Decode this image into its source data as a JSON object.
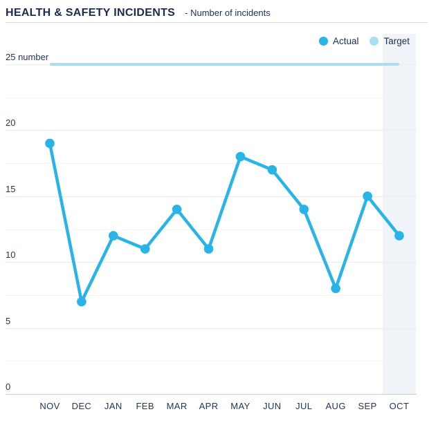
{
  "header": {
    "title": "HEALTH & SAFETY INCIDENTS",
    "subtitle": "- Number of incidents"
  },
  "legend": {
    "items": [
      {
        "label": "Actual",
        "color": "#29b4e8"
      },
      {
        "label": "Target",
        "color": "#abddf2"
      }
    ]
  },
  "y_axis": {
    "top_label": "25 number",
    "unit": "number"
  },
  "chart_data": {
    "type": "line",
    "title": "HEALTH & SAFETY INCIDENTS - Number of incidents",
    "categories": [
      "NOV",
      "DEC",
      "JAN",
      "FEB",
      "MAR",
      "APR",
      "MAY",
      "JUN",
      "JUL",
      "AUG",
      "SEP",
      "OCT"
    ],
    "series": [
      {
        "name": "Actual",
        "style": "line-markers",
        "color": "#29b4e8",
        "values": [
          19,
          7,
          12,
          11,
          14,
          11,
          18,
          17,
          14,
          8,
          15,
          12
        ]
      },
      {
        "name": "Target",
        "style": "flat-line",
        "color": "#abddf2",
        "values": [
          25,
          25,
          25,
          25,
          25,
          25,
          25,
          25,
          25,
          25,
          25,
          25
        ]
      }
    ],
    "xlabel": "",
    "ylabel": "number",
    "ylim": [
      0,
      25
    ],
    "y_ticks": [
      0,
      5,
      10,
      15,
      20,
      25
    ],
    "minor_grid_step": 2.5,
    "grid": true,
    "legend_position": "top-right",
    "highlight_category": "OCT"
  },
  "colors": {
    "accent_actual": "#29b4e8",
    "accent_target": "#abddf2",
    "highlight_band": "#f0f4f9",
    "text_navy": "#1f2b52",
    "grid_major": "#e9ecf0",
    "grid_minor": "#f3f5f8",
    "grid_zero": "#c9cfdb",
    "divider": "#d6d9de"
  }
}
